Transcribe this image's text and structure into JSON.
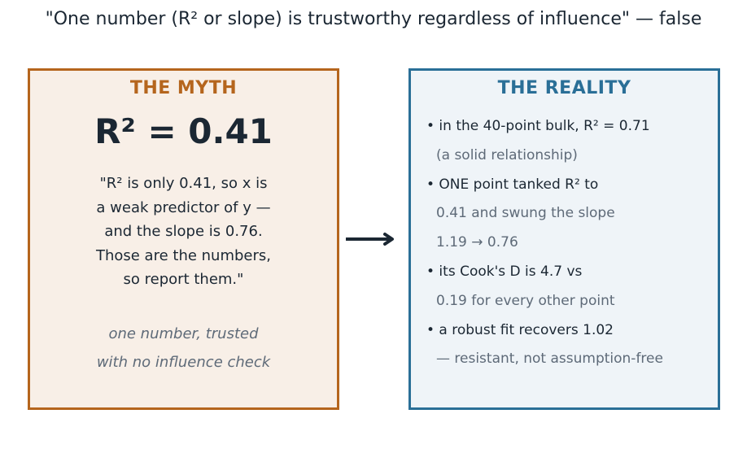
{
  "title": "\"One number (R² or slope) is trustworthy regardless of influence\" — false",
  "myth": {
    "heading": "THE MYTH",
    "stat": "R² = 0.41",
    "quote_lines": [
      "\"R² is only 0.41, so x is",
      "a weak predictor of y —",
      "and the slope is 0.76.",
      "Those are the numbers,",
      "so report them.\""
    ],
    "caption_lines": [
      "one number, trusted",
      "with no influence check"
    ],
    "colors": {
      "accent": "#b5651d",
      "background": "#f8efe7"
    }
  },
  "reality": {
    "heading": "THE REALITY",
    "lines": [
      "• in the 40-point bulk, R² = 0.71",
      "(a solid relationship)",
      "• ONE point tanked R² to",
      "0.41 and swung the slope",
      "1.19 → 0.76",
      "• its Cook's D is 4.7 vs",
      "0.19 for every other point",
      "• a robust fit recovers 1.02",
      "— resistant, not assumption-free"
    ],
    "colors": {
      "accent": "#2a6f97",
      "background": "#eff4f8"
    }
  },
  "arrow": {
    "icon": "right-arrow-icon",
    "color": "#1b2733"
  }
}
